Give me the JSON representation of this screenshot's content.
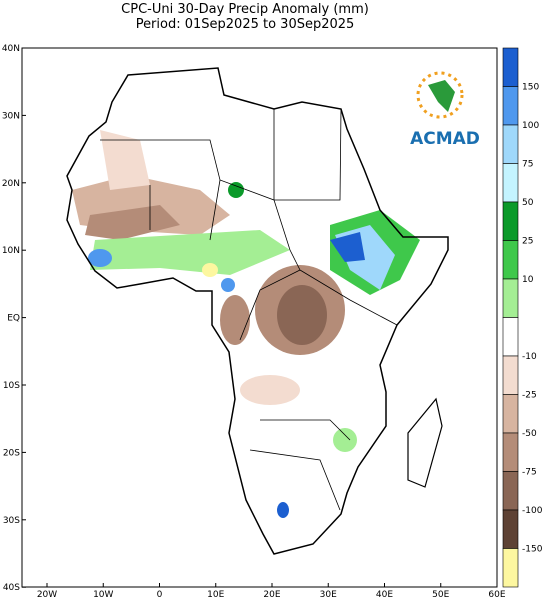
{
  "header": {
    "title": "CPC-Uni 30-Day Precip Anomaly (mm)",
    "period": "Period: 01Sep2025 to 30Sep2025"
  },
  "logo": {
    "text": "ACMAD"
  },
  "lat_labels": [
    "40N",
    "30N",
    "20N",
    "10N",
    "EQ",
    "10S",
    "20S",
    "30S",
    "40S"
  ],
  "lon_labels": [
    "20W",
    "10W",
    "0",
    "10E",
    "20E",
    "30E",
    "40E",
    "50E",
    "60E"
  ],
  "colorbar": {
    "labels": [
      "150",
      "100",
      "75",
      "50",
      "25",
      "10",
      "-10",
      "-25",
      "-50",
      "-75",
      "-100",
      "-150"
    ],
    "colors": [
      "#1c5fd0",
      "#4f98ee",
      "#9fd8fb",
      "#c4f4ff",
      "#0b9a2a",
      "#3fc84b",
      "#a4ee94",
      "#ffffff",
      "#f3dcd0",
      "#d7b4a0",
      "#b48c78",
      "#8a6655",
      "#5e4234",
      "#fdf7a0"
    ]
  }
}
